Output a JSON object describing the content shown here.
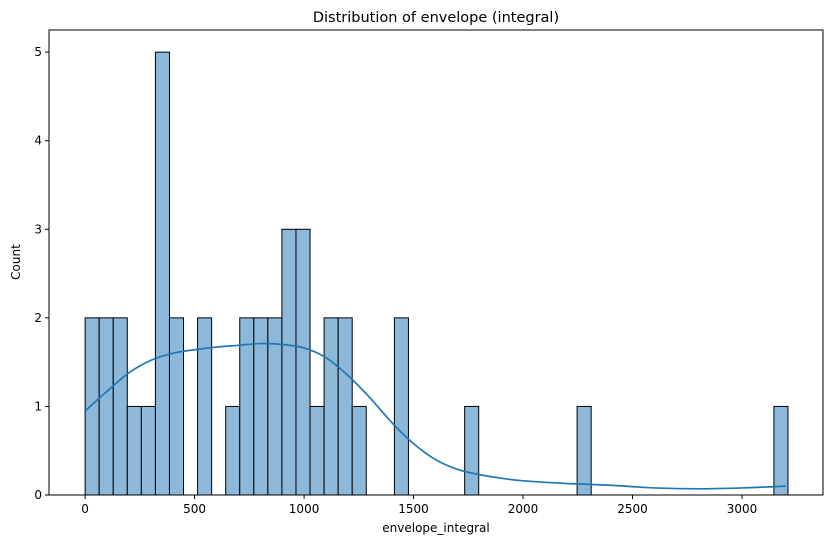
{
  "chart_data": {
    "type": "histogram",
    "title": "Distribution of envelope (integral)",
    "xlabel": "envelope_integral",
    "ylabel": "Count",
    "xlim": [
      -165,
      3370
    ],
    "ylim": [
      0,
      5.25
    ],
    "xticks": [
      0,
      500,
      1000,
      1500,
      2000,
      2500,
      3000
    ],
    "yticks": [
      0,
      1,
      2,
      3,
      4,
      5
    ],
    "bin_start": 0,
    "bin_width": 64.2,
    "counts": [
      2,
      2,
      2,
      1,
      1,
      5,
      2,
      0,
      2,
      0,
      1,
      2,
      2,
      2,
      3,
      3,
      1,
      2,
      2,
      1,
      0,
      0,
      2,
      0,
      0,
      0,
      0,
      1,
      0,
      0,
      0,
      0,
      0,
      0,
      0,
      1,
      0,
      0,
      0,
      0,
      0,
      0,
      0,
      0,
      0,
      0,
      0,
      0,
      0,
      1
    ],
    "kde": {
      "x": [
        0,
        100,
        200,
        300,
        400,
        500,
        600,
        700,
        800,
        900,
        1000,
        1100,
        1200,
        1300,
        1400,
        1500,
        1600,
        1700,
        1800,
        1900,
        2000,
        2200,
        2400,
        2600,
        2800,
        3000,
        3200
      ],
      "y": [
        0.95,
        1.17,
        1.38,
        1.52,
        1.6,
        1.64,
        1.67,
        1.69,
        1.71,
        1.7,
        1.66,
        1.55,
        1.35,
        1.1,
        0.82,
        0.58,
        0.4,
        0.29,
        0.23,
        0.19,
        0.16,
        0.13,
        0.11,
        0.08,
        0.07,
        0.08,
        0.1
      ]
    },
    "colors": {
      "bar_fill": "#8db8da",
      "bar_edge": "#000000",
      "kde_line": "#1f77b4"
    }
  }
}
